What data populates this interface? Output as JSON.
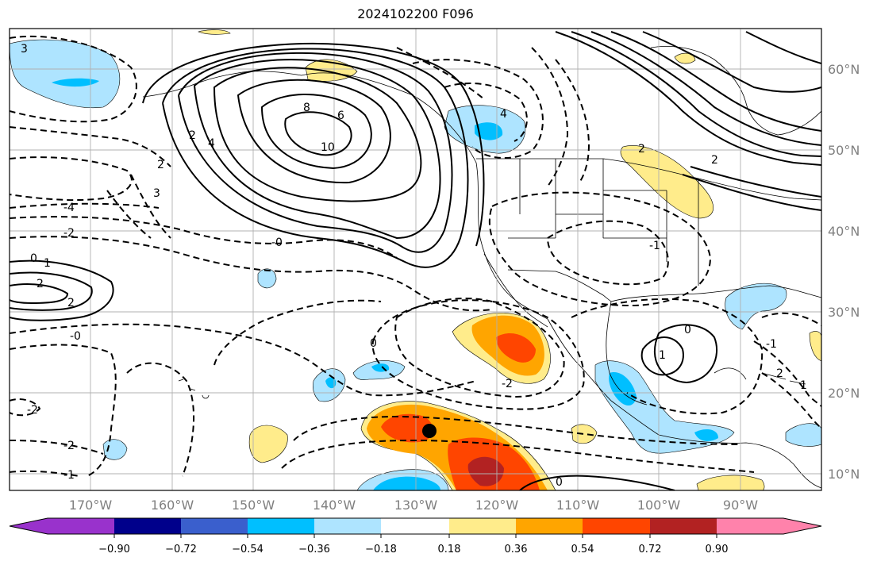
{
  "title": "2024102200 F096",
  "colors": {
    "map_background": "#ffffff",
    "gridline": "#b0b0b0",
    "contour": "#000000",
    "colorbar": [
      "#9932cc",
      "#00008b",
      "#3a5fcd",
      "#00bfff",
      "#aee4ff",
      "#ffffff",
      "#ffec8b",
      "#ffa500",
      "#ff4500",
      "#b22222",
      "#ff82ab"
    ]
  },
  "map": {
    "lon_labels": [
      "170°W",
      "160°W",
      "150°W",
      "140°W",
      "130°W",
      "120°W",
      "110°W",
      "100°W",
      "90°W"
    ],
    "lat_labels": [
      "60°N",
      "50°N",
      "40°N",
      "30°N",
      "20°N",
      "10°N"
    ],
    "contour_labels": [
      "3",
      "4",
      "2",
      "2",
      "6",
      "8",
      "10",
      "4",
      "2",
      "3",
      "-4",
      "-2",
      "0",
      "1",
      "2",
      "2",
      "-0",
      "0",
      "-2",
      "-1",
      "-2",
      "-0",
      "-1",
      "-2",
      "-1",
      "0",
      "1",
      "2",
      "1",
      "2",
      "0"
    ],
    "marker": "storm-center-dot"
  },
  "colorbar": {
    "tick_labels": [
      "−0.90",
      "−0.72",
      "−0.54",
      "−0.36",
      "−0.18",
      "0.18",
      "0.36",
      "0.54",
      "0.72",
      "0.90"
    ]
  }
}
